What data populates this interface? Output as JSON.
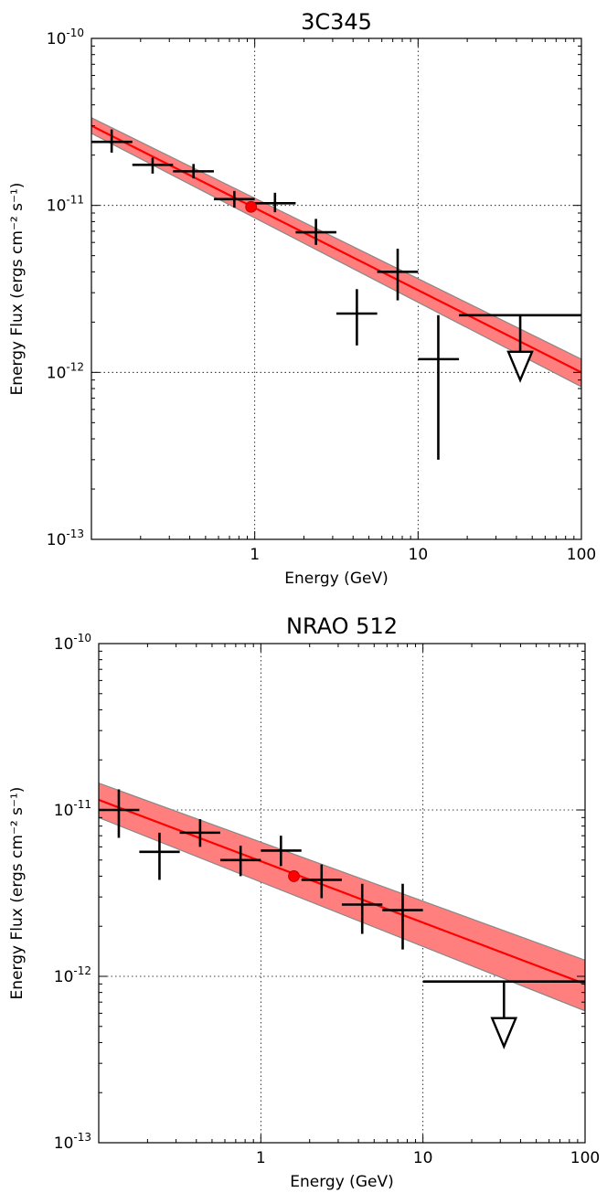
{
  "chart_data": [
    {
      "type": "scatter",
      "title": "3C345",
      "xlabel": "Energy (GeV)",
      "ylabel": "Energy Flux (ergs cm⁻² s⁻¹)",
      "xscale": "log",
      "yscale": "log",
      "xlim": [
        0.1,
        100
      ],
      "ylim": [
        1e-13,
        1e-10
      ],
      "grid": true,
      "x_ticks": [
        {
          "value": 1,
          "label": "1"
        },
        {
          "value": 10,
          "label": "10"
        },
        {
          "value": 100,
          "label": "100"
        }
      ],
      "y_ticks": [
        {
          "value": 1e-13,
          "base": "10",
          "exp": "-13"
        },
        {
          "value": 1e-12,
          "base": "10",
          "exp": "-12"
        },
        {
          "value": 1e-11,
          "base": "10",
          "exp": "-11"
        },
        {
          "value": 1e-10,
          "base": "10",
          "exp": "-10"
        }
      ],
      "points": [
        {
          "x": 0.133,
          "xlo": 0.1,
          "xhi": 0.178,
          "y": 2.4e-11,
          "ylo": 2.07e-11,
          "yhi": 2.85e-11
        },
        {
          "x": 0.237,
          "xlo": 0.178,
          "xhi": 0.316,
          "y": 1.75e-11,
          "ylo": 1.55e-11,
          "yhi": 1.93e-11
        },
        {
          "x": 0.422,
          "xlo": 0.316,
          "xhi": 0.562,
          "y": 1.6e-11,
          "ylo": 1.45e-11,
          "yhi": 1.77e-11
        },
        {
          "x": 0.75,
          "xlo": 0.562,
          "xhi": 1.0,
          "y": 1.09e-11,
          "ylo": 9.7e-12,
          "yhi": 1.22e-11
        },
        {
          "x": 1.33,
          "xlo": 1.0,
          "xhi": 1.78,
          "y": 1.03e-11,
          "ylo": 9.1e-12,
          "yhi": 1.19e-11
        },
        {
          "x": 2.37,
          "xlo": 1.78,
          "xhi": 3.16,
          "y": 6.9e-12,
          "ylo": 5.8e-12,
          "yhi": 8.3e-12
        },
        {
          "x": 4.22,
          "xlo": 3.16,
          "xhi": 5.62,
          "y": 2.25e-12,
          "ylo": 1.45e-12,
          "yhi": 3.15e-12
        },
        {
          "x": 7.5,
          "xlo": 5.62,
          "xhi": 10.0,
          "y": 4e-12,
          "ylo": 2.7e-12,
          "yhi": 5.5e-12
        },
        {
          "x": 13.3,
          "xlo": 10.0,
          "xhi": 17.8,
          "y": 1.2e-12,
          "ylo": 3e-13,
          "yhi": 2.2e-12
        }
      ],
      "upper_limits": [
        {
          "x": 42.2,
          "xlo": 17.8,
          "xhi": 100,
          "y": 2.2e-12
        }
      ],
      "model": {
        "pivot_energy": 0.95,
        "pivot_flux": 9.8e-12,
        "e_start": 0.1,
        "e_end": 100,
        "flux_start": 3e-11,
        "flux_end": 1e-12,
        "band_lo": [
          2.7e-11,
          8.2e-13
        ],
        "band_hi": [
          3.35e-11,
          1.2e-12
        ]
      },
      "colors": {
        "model": "#ff0000",
        "band": "#ff7f7f",
        "band_edge": "#888888",
        "points": "#000000",
        "pivot": "#ff0000"
      }
    },
    {
      "type": "scatter",
      "title": "NRAO 512",
      "xlabel": "Energy (GeV)",
      "ylabel": "Energy Flux (ergs cm⁻² s⁻¹)",
      "xscale": "log",
      "yscale": "log",
      "xlim": [
        0.1,
        100
      ],
      "ylim": [
        1e-13,
        1e-10
      ],
      "grid": true,
      "x_ticks": [
        {
          "value": 1,
          "label": "1"
        },
        {
          "value": 10,
          "label": "10"
        },
        {
          "value": 100,
          "label": "100"
        }
      ],
      "y_ticks": [
        {
          "value": 1e-13,
          "base": "10",
          "exp": "-13"
        },
        {
          "value": 1e-12,
          "base": "10",
          "exp": "-12"
        },
        {
          "value": 1e-11,
          "base": "10",
          "exp": "-11"
        },
        {
          "value": 1e-10,
          "base": "10",
          "exp": "-10"
        }
      ],
      "points": [
        {
          "x": 0.133,
          "xlo": 0.1,
          "xhi": 0.178,
          "y": 1e-11,
          "ylo": 6.8e-12,
          "yhi": 1.33e-11
        },
        {
          "x": 0.237,
          "xlo": 0.178,
          "xhi": 0.316,
          "y": 5.6e-12,
          "ylo": 3.8e-12,
          "yhi": 7.3e-12
        },
        {
          "x": 0.422,
          "xlo": 0.316,
          "xhi": 0.562,
          "y": 7.3e-12,
          "ylo": 6e-12,
          "yhi": 8.8e-12
        },
        {
          "x": 0.75,
          "xlo": 0.562,
          "xhi": 1.0,
          "y": 5e-12,
          "ylo": 4e-12,
          "yhi": 6.1e-12
        },
        {
          "x": 1.33,
          "xlo": 1.0,
          "xhi": 1.78,
          "y": 5.7e-12,
          "ylo": 4.6e-12,
          "yhi": 7e-12
        },
        {
          "x": 2.37,
          "xlo": 1.78,
          "xhi": 3.16,
          "y": 3.8e-12,
          "ylo": 2.95e-12,
          "yhi": 4.7e-12
        },
        {
          "x": 4.22,
          "xlo": 3.16,
          "xhi": 5.62,
          "y": 2.7e-12,
          "ylo": 1.8e-12,
          "yhi": 3.6e-12
        },
        {
          "x": 7.5,
          "xlo": 5.62,
          "xhi": 10.0,
          "y": 2.5e-12,
          "ylo": 1.45e-12,
          "yhi": 3.6e-12
        }
      ],
      "upper_limits": [
        {
          "x": 31.6,
          "xlo": 10.0,
          "xhi": 100,
          "y": 9.3e-13
        }
      ],
      "model": {
        "pivot_energy": 1.6,
        "pivot_flux": 4e-12,
        "e_start": 0.1,
        "e_end": 100,
        "flux_start": 1.15e-11,
        "flux_end": 9e-13,
        "band_lo": [
          9e-12,
          6.2e-13
        ],
        "band_hi": [
          1.45e-11,
          1.25e-12
        ]
      },
      "colors": {
        "model": "#ff0000",
        "band": "#ff7f7f",
        "band_edge": "#888888",
        "points": "#000000",
        "pivot": "#ff0000"
      }
    }
  ]
}
